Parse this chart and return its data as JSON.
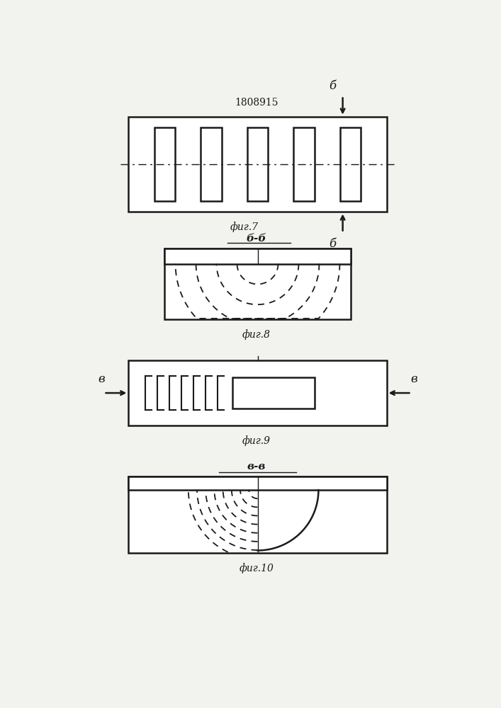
{
  "bg_color": "#f2f2ee",
  "line_color": "#1a1a1a",
  "patent_number": "1808915",
  "fig7_label": "фиг.7",
  "fig8_label": "фиг.8",
  "fig9_label": "фиг.9",
  "fig10_label": "фиг.10",
  "section_bb": "б-б",
  "section_vv": "в-в",
  "b_label": "б",
  "v_label": "в"
}
